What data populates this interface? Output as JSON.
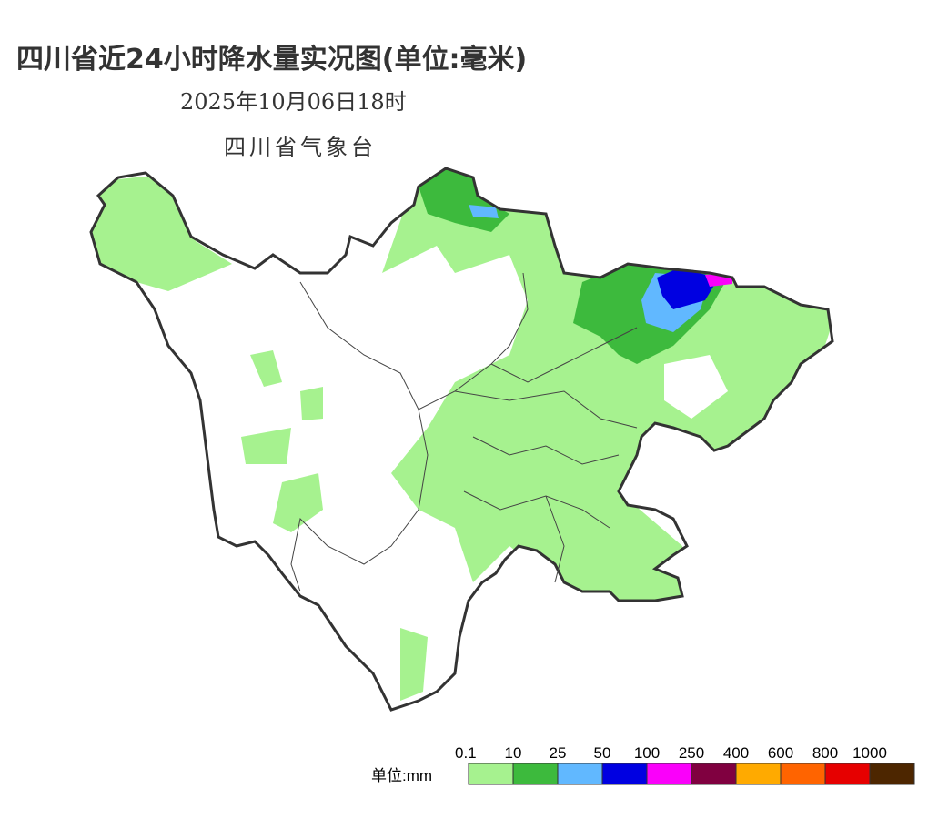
{
  "header": {
    "title": "四川省近24小时降水量实况图(单位:毫米)",
    "datetime": "2025年10月06日18时",
    "source": "四川省气象台"
  },
  "legend": {
    "unit_label": "单位:mm",
    "items": [
      {
        "label": "0.1",
        "color": "#a6f28f"
      },
      {
        "label": "10",
        "color": "#3dba3d"
      },
      {
        "label": "25",
        "color": "#61b8ff"
      },
      {
        "label": "50",
        "color": "#0000e1"
      },
      {
        "label": "100",
        "color": "#fa00fa"
      },
      {
        "label": "250",
        "color": "#800040"
      },
      {
        "label": "400",
        "color": "#ffaa00"
      },
      {
        "label": "600",
        "color": "#ff6400"
      },
      {
        "label": "800",
        "color": "#e60000"
      },
      {
        "label": "1000",
        "color": "#4d2600"
      }
    ]
  }
}
